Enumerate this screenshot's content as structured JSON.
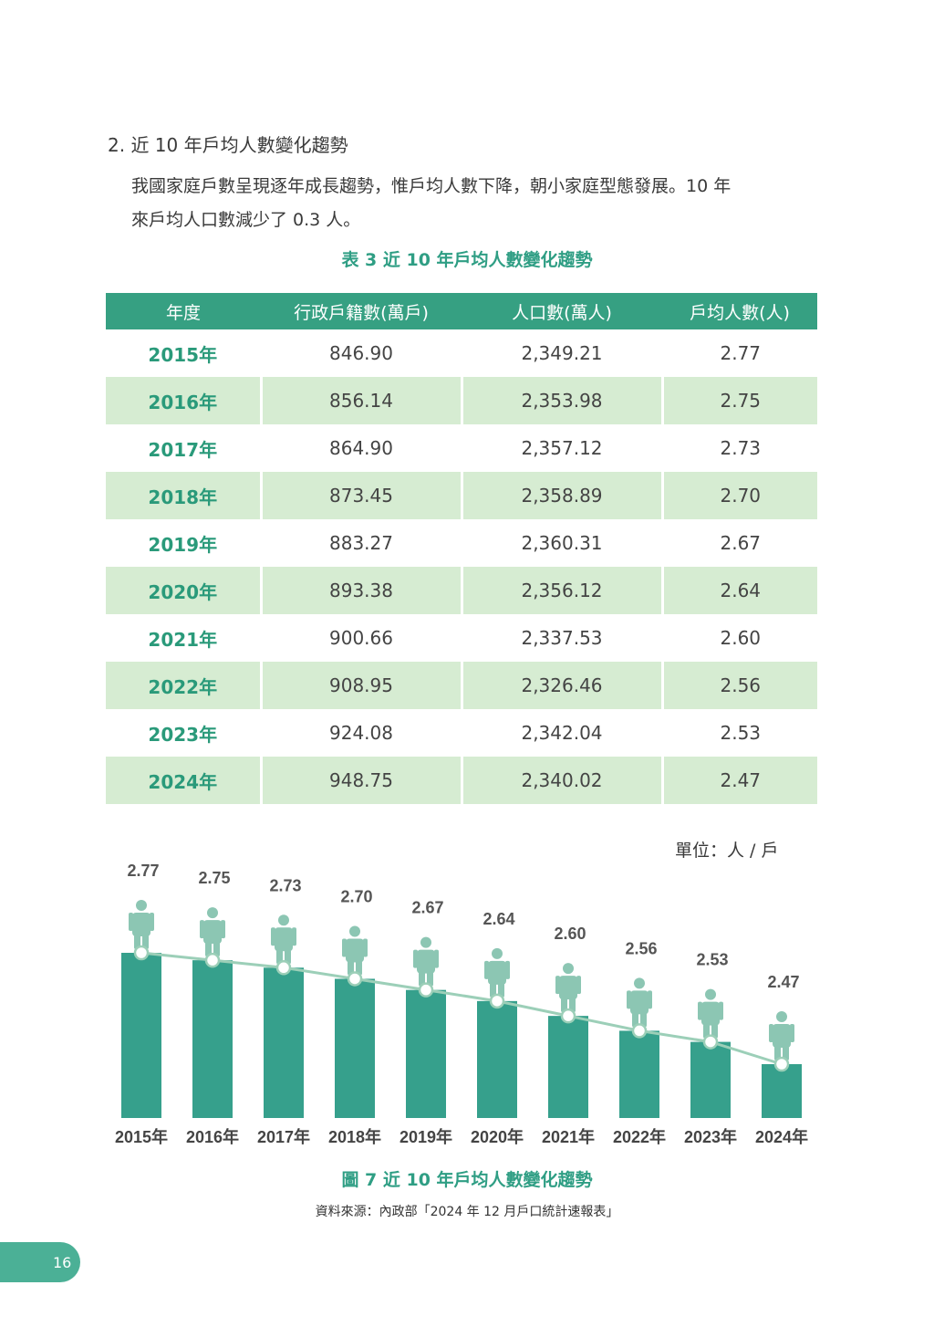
{
  "section": {
    "heading": "2. 近 10 年戶均人數變化趨勢",
    "paragraph_lines": [
      "我國家庭戶數呈現逐年成長趨勢，惟戶均人數下降，朝小家庭型態發展。10 年",
      "來戶均人口數減少了 0.3 人。"
    ]
  },
  "table": {
    "caption": "表 3 近 10 年戶均人數變化趨勢",
    "headers": [
      "年度",
      "行政戶籍數(萬戶)",
      "人口數(萬人)",
      "戶均人數(人)"
    ],
    "rows": [
      [
        "2015年",
        "846.90",
        "2,349.21",
        "2.77"
      ],
      [
        "2016年",
        "856.14",
        "2,353.98",
        "2.75"
      ],
      [
        "2017年",
        "864.90",
        "2,357.12",
        "2.73"
      ],
      [
        "2018年",
        "873.45",
        "2,358.89",
        "2.70"
      ],
      [
        "2019年",
        "883.27",
        "2,360.31",
        "2.67"
      ],
      [
        "2020年",
        "893.38",
        "2,356.12",
        "2.64"
      ],
      [
        "2021年",
        "900.66",
        "2,337.53",
        "2.60"
      ],
      [
        "2022年",
        "908.95",
        "2,326.46",
        "2.56"
      ],
      [
        "2023年",
        "924.08",
        "2,342.04",
        "2.53"
      ],
      [
        "2024年",
        "948.75",
        "2,340.02",
        "2.47"
      ]
    ]
  },
  "chart_data": {
    "type": "bar",
    "unit_label": "單位：人 / 戶",
    "categories": [
      "2015年",
      "2016年",
      "2017年",
      "2018年",
      "2019年",
      "2020年",
      "2021年",
      "2022年",
      "2023年",
      "2024年"
    ],
    "values": [
      2.77,
      2.75,
      2.73,
      2.7,
      2.67,
      2.64,
      2.6,
      2.56,
      2.53,
      2.47
    ],
    "value_labels": [
      "2.77",
      "2.75",
      "2.73",
      "2.70",
      "2.67",
      "2.64",
      "2.60",
      "2.56",
      "2.53",
      "2.47"
    ],
    "trend_line": true,
    "colors": {
      "bar": "#36a08c",
      "line": "#9ccfb8",
      "person_icon": "#8cc6b3",
      "value_label": "#555555",
      "category_label": "#444444"
    },
    "icon": "person-icon"
  },
  "figure": {
    "caption": "圖 7 近 10 年戶均人數變化趨勢",
    "source": "資料來源：內政部「2024 年 12 月戶口統計速報表」"
  },
  "page": {
    "number": "16"
  }
}
